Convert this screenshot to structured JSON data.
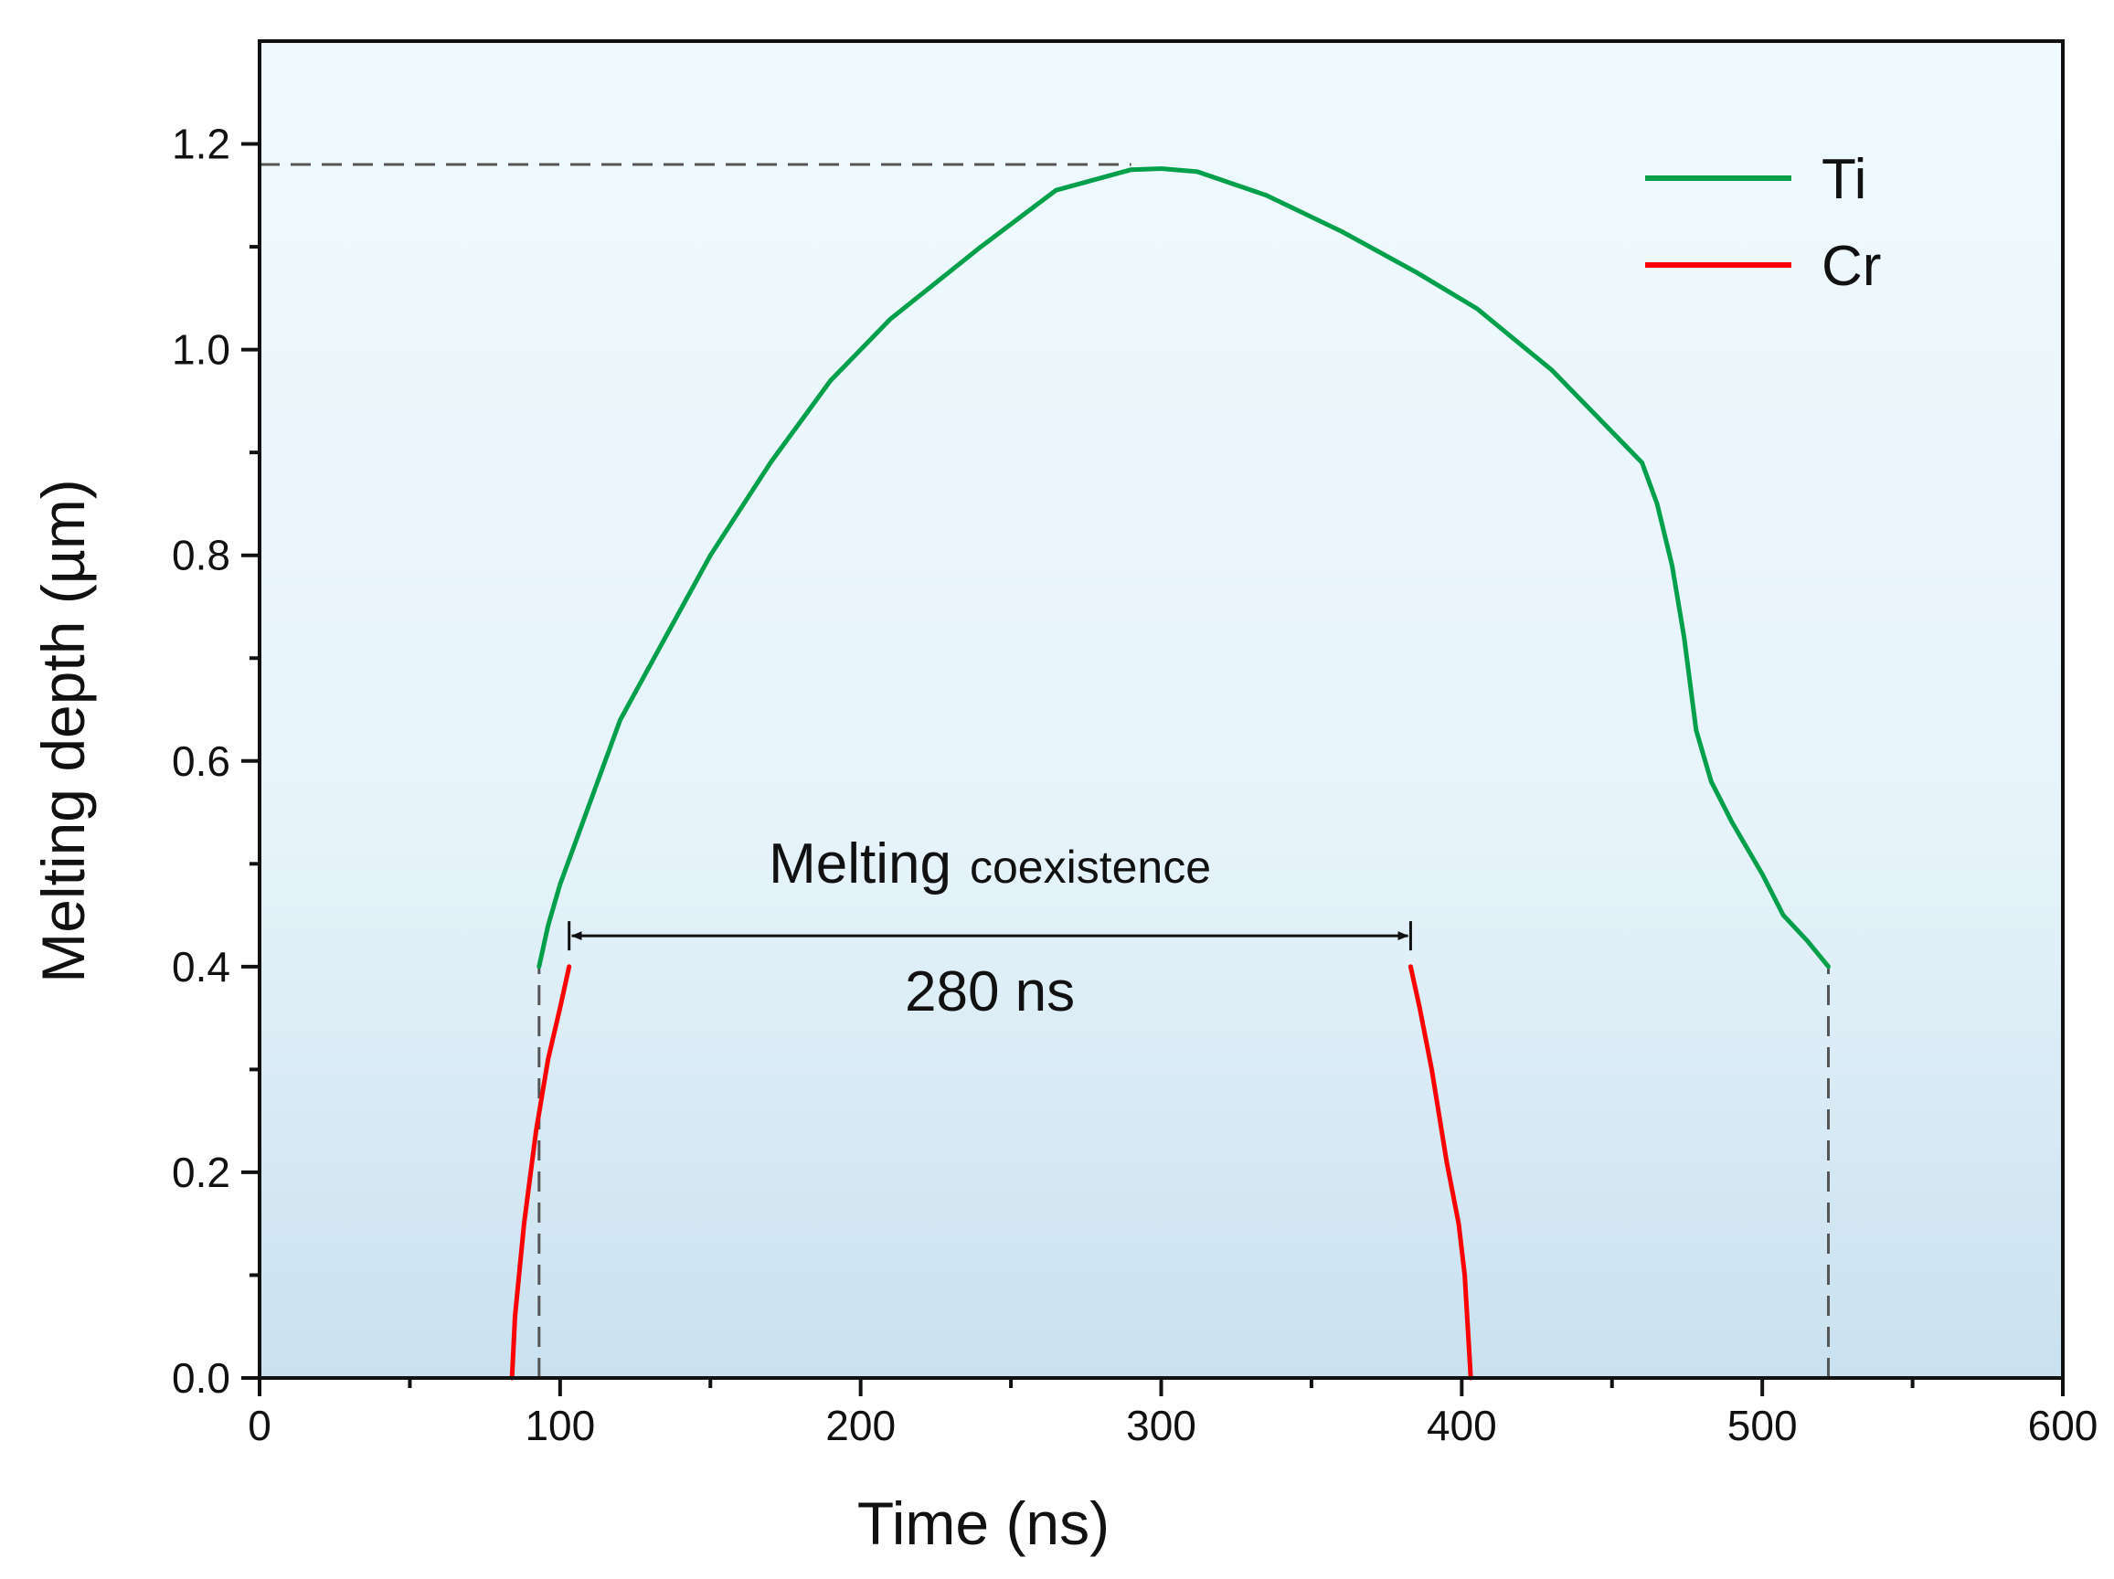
{
  "chart_data": {
    "type": "line",
    "title": "",
    "xlabel": "Time (ns)",
    "ylabel": "Melting depth (µm)",
    "xlim": [
      0,
      600
    ],
    "ylim": [
      0,
      1.3
    ],
    "xticks": [
      0,
      100,
      200,
      300,
      400,
      500,
      600
    ],
    "xtick_labels": [
      "0",
      "100",
      "200",
      "300",
      "400",
      "500",
      "600"
    ],
    "yticks": [
      0.0,
      0.2,
      0.4,
      0.6,
      0.8,
      1.0,
      1.2
    ],
    "ytick_labels": [
      "0.0",
      "0.2",
      "0.4",
      "0.6",
      "0.8",
      "1.0",
      "1.2"
    ],
    "grid": false,
    "legend_position": "top-right",
    "series": [
      {
        "name": "Ti",
        "color": "#00a04a",
        "x": [
          93,
          96,
          100,
          110,
          120,
          135,
          150,
          170,
          190,
          210,
          240,
          265,
          290,
          300,
          312,
          335,
          360,
          385,
          405,
          430,
          450,
          460,
          465,
          470,
          474,
          478,
          483,
          490,
          500,
          507,
          515,
          522
        ],
        "y": [
          0.4,
          0.44,
          0.48,
          0.56,
          0.64,
          0.72,
          0.8,
          0.89,
          0.97,
          1.03,
          1.1,
          1.155,
          1.175,
          1.176,
          1.173,
          1.15,
          1.115,
          1.075,
          1.04,
          0.98,
          0.92,
          0.89,
          0.85,
          0.79,
          0.72,
          0.63,
          0.58,
          0.54,
          0.49,
          0.45,
          0.425,
          0.4
        ]
      },
      {
        "name": "Cr",
        "color": "#ff0000",
        "segments": [
          {
            "x": [
              84,
              85,
              88,
              92,
              96,
              100,
              103
            ],
            "y": [
              0.0,
              0.06,
              0.15,
              0.24,
              0.31,
              0.36,
              0.4
            ]
          },
          {
            "x": [
              383,
              386,
              390,
              395,
              399,
              401,
              402,
              403
            ],
            "y": [
              0.4,
              0.36,
              0.3,
              0.21,
              0.15,
              0.1,
              0.05,
              0.0
            ]
          }
        ]
      }
    ],
    "reference_lines": [
      {
        "kind": "horizontal",
        "y": 1.18,
        "x_from": 0,
        "x_to": 290
      },
      {
        "kind": "vertical",
        "x": 93,
        "y_from": 0,
        "y_to": 0.4
      },
      {
        "kind": "vertical",
        "x": 522,
        "y_from": 0,
        "y_to": 0.4
      }
    ],
    "annotations": {
      "label_main": "Melting",
      "label_sub": "coexistence",
      "duration": "280 ns",
      "arrow_x": [
        103,
        383
      ],
      "arrow_y": 0.43
    }
  },
  "colors": {
    "bg_top": "#f0fafe",
    "bg_bottom": "#c9e1ef",
    "axis": "#111111",
    "ref_line": "#555555"
  }
}
